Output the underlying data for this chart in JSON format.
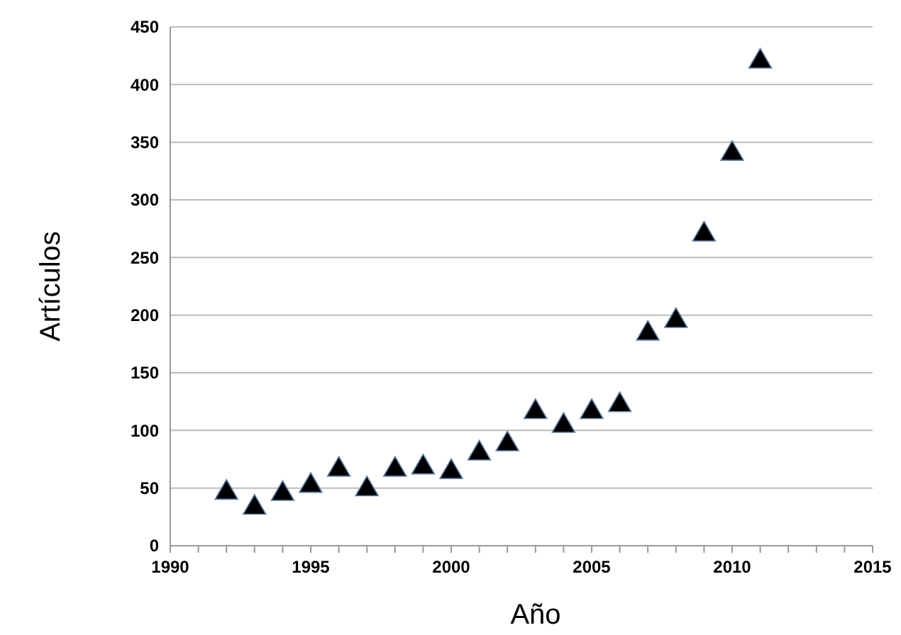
{
  "chart_data": {
    "type": "scatter",
    "xlabel": "Año",
    "ylabel": "Artículos",
    "x": [
      1992,
      1993,
      1994,
      1995,
      1996,
      1997,
      1998,
      1999,
      2000,
      2001,
      2002,
      2003,
      2004,
      2005,
      2006,
      2007,
      2008,
      2009,
      2010,
      2011
    ],
    "series": [
      {
        "color": "#000000",
        "values": [
          46,
          33,
          45,
          52,
          66,
          49,
          66,
          68,
          64,
          80,
          88,
          116,
          104,
          116,
          122,
          184,
          195,
          270,
          340,
          420
        ]
      }
    ],
    "xlim": [
      1990,
      2015
    ],
    "xticks": [
      1990,
      1995,
      2000,
      2005,
      2010,
      2015
    ],
    "ylim": [
      0,
      450
    ],
    "yticks": [
      0,
      50,
      100,
      150,
      200,
      250,
      300,
      350,
      400,
      450
    ],
    "grid": "y",
    "marker": "triangle"
  }
}
